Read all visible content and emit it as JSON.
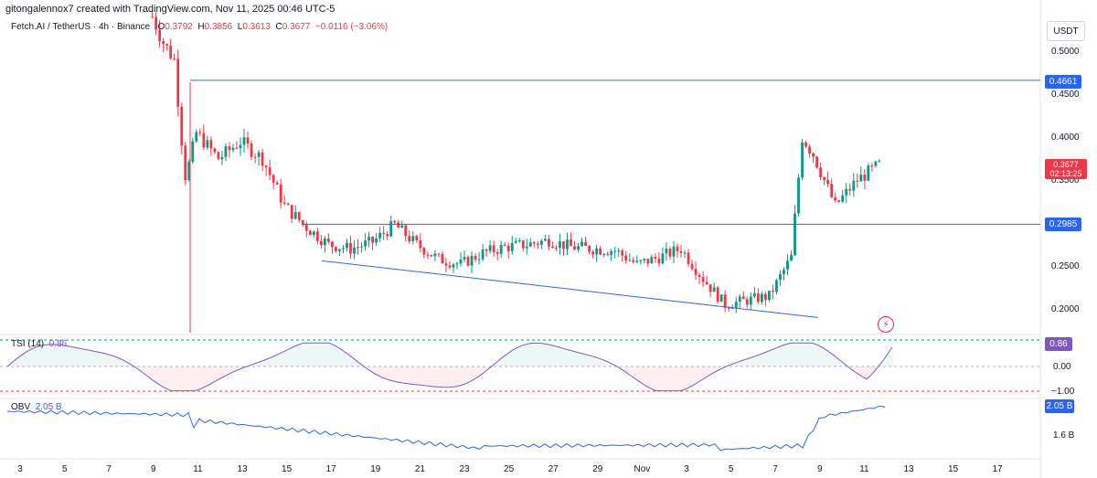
{
  "attribution": "gitongalennox7 created with TradingView.com, Nov 11, 2025 00:46 UTC-5",
  "symbol_line": {
    "symbol": "Fetch.AI / TetherUS · 4h · Binance",
    "o_label": "O",
    "o": "0.3792",
    "h_label": "H",
    "h": "0.3856",
    "l_label": "L",
    "l": "0.3613",
    "c_label": "C",
    "c": "0.3677",
    "change": "−0.0116 (−3.06%)"
  },
  "currency": "USDT",
  "price_axis": {
    "ticks": [
      "0.5000",
      "0.4500",
      "0.4000",
      "0.3500",
      "0.2500",
      "0.2000"
    ],
    "resistance_label": "0.4661",
    "support_label": "0.2985",
    "last_price_label": "0.3677",
    "countdown": "02:13:25"
  },
  "tsi": {
    "name": "TSI (14)",
    "value": "0.86",
    "ticks": [
      "0.00",
      "−1.00"
    ],
    "badge": "0.86"
  },
  "obv": {
    "name": "OBV",
    "value": "2.05 B",
    "ticks": [
      "1.6 B"
    ],
    "badge": "2.05 B"
  },
  "x_axis": [
    "3",
    "5",
    "7",
    "9",
    "11",
    "13",
    "15",
    "17",
    "19",
    "21",
    "23",
    "25",
    "27",
    "29",
    "Nov",
    "3",
    "5",
    "7",
    "9",
    "11",
    "13",
    "15",
    "17"
  ],
  "colors": {
    "up": "#089981",
    "down": "#f23645",
    "line": "#2962ff",
    "tsi": "#7e57c2"
  },
  "chart_data": {
    "type": "candlestick",
    "timeframe": "4h",
    "ylim": [
      0.18,
      0.525
    ],
    "horizontal_levels": [
      0.4661,
      0.2985
    ],
    "trendline": {
      "from": [
        "Oct 16",
        0.256
      ],
      "to": [
        "Nov 6",
        0.19
      ]
    },
    "x_ticks": [
      "3",
      "5",
      "7",
      "9",
      "11",
      "13",
      "15",
      "17",
      "19",
      "21",
      "23",
      "25",
      "27",
      "29",
      "Nov",
      "3",
      "5",
      "7",
      "9",
      "11",
      "13",
      "15",
      "17"
    ],
    "price_path": [
      [
        "Oct 9",
        0.54
      ],
      [
        "Oct 9 12:00",
        0.51
      ],
      [
        "Oct 10",
        0.49
      ],
      [
        "Oct 10 12:00",
        0.35
      ],
      [
        "Oct 11",
        0.405
      ],
      [
        "Oct 12",
        0.375
      ],
      [
        "Oct 13",
        0.395
      ],
      [
        "Oct 14",
        0.375
      ],
      [
        "Oct 15",
        0.32
      ],
      [
        "Oct 16",
        0.295
      ],
      [
        "Oct 17",
        0.275
      ],
      [
        "Oct 18",
        0.27
      ],
      [
        "Oct 19",
        0.278
      ],
      [
        "Oct 20",
        0.298
      ],
      [
        "Oct 21",
        0.275
      ],
      [
        "Oct 22",
        0.258
      ],
      [
        "Oct 23",
        0.252
      ],
      [
        "Oct 24",
        0.265
      ],
      [
        "Oct 25",
        0.272
      ],
      [
        "Oct 26",
        0.275
      ],
      [
        "Oct 27",
        0.28
      ],
      [
        "Oct 28",
        0.272
      ],
      [
        "Oct 29",
        0.27
      ],
      [
        "Oct 30",
        0.268
      ],
      [
        "Oct 31",
        0.252
      ],
      [
        "Nov 1",
        0.26
      ],
      [
        "Nov 2",
        0.27
      ],
      [
        "Nov 3",
        0.235
      ],
      [
        "Nov 4",
        0.205
      ],
      [
        "Nov 5",
        0.21
      ],
      [
        "Nov 6",
        0.215
      ],
      [
        "Nov 7",
        0.26
      ],
      [
        "Nov 7 12:00",
        0.4
      ],
      [
        "Nov 8",
        0.38
      ],
      [
        "Nov 9",
        0.32
      ],
      [
        "Nov 10",
        0.35
      ],
      [
        "Nov 11",
        0.3677
      ]
    ],
    "tsi": {
      "latest": 0.86,
      "range": [
        -1,
        1
      ]
    },
    "obv": {
      "latest": "2.05 B"
    }
  }
}
